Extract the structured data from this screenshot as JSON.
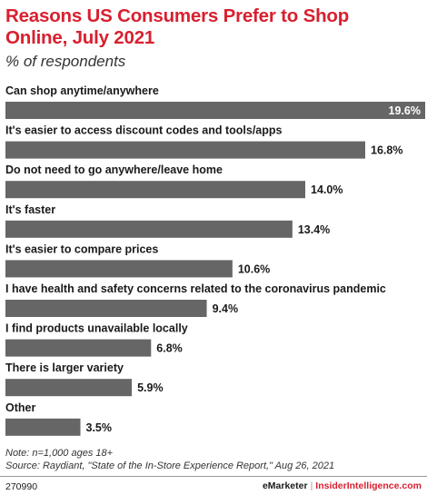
{
  "chart_data": {
    "type": "bar",
    "orientation": "horizontal",
    "title": "Reasons US Consumers Prefer to Shop Online, July 2021",
    "subtitle": "% of respondents",
    "categories": [
      "Can shop anytime/anywhere",
      "It's easier to access discount codes and tools/apps",
      "Do not need to go anywhere/leave home",
      "It's faster",
      "It's easier to compare prices",
      "I have health and safety concerns related to the coronavirus pandemic",
      "I find products unavailable locally",
      "There is larger variety",
      "Other"
    ],
    "values": [
      19.6,
      16.8,
      14.0,
      13.4,
      10.6,
      9.4,
      6.8,
      5.9,
      3.5
    ],
    "value_labels": [
      "19.6%",
      "16.8%",
      "14.0%",
      "13.4%",
      "10.6%",
      "9.4%",
      "6.8%",
      "5.9%",
      "3.5%"
    ],
    "xlim": [
      0,
      19.6
    ],
    "grid": false,
    "bar_color": "#666666"
  },
  "note": "Note: n=1,000 ages 18+",
  "source": "Source: Raydiant, \"State of the In-Store Experience Report,\" Aug 26, 2021",
  "footer": {
    "chart_id": "270990",
    "brand": "eMarketer",
    "separator": "|",
    "brand2": "InsiderIntelligence.com"
  },
  "colors": {
    "title": "#d8202f",
    "bar": "#666666",
    "label_inside": "#ffffff",
    "label_outside": "#1a1a1a"
  }
}
